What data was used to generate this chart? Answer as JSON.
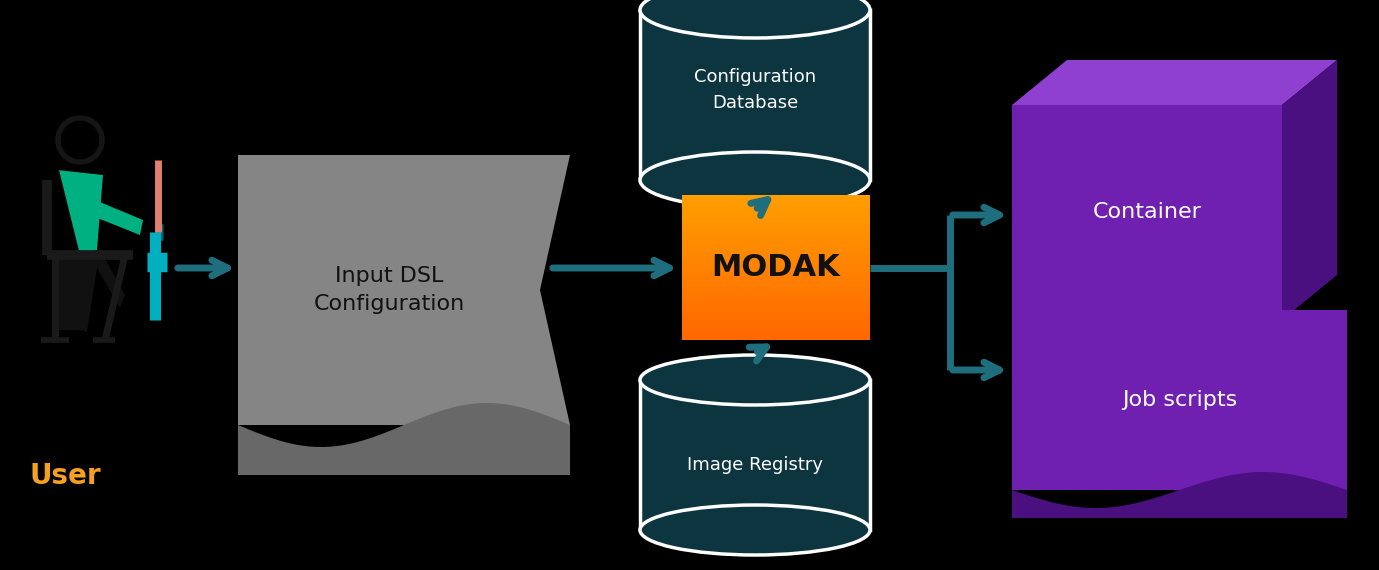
{
  "bg_color": "#000000",
  "text_color": "#ffffff",
  "teal_color": "#1e6e7e",
  "orange_light": "#f5a830",
  "orange_dark": "#c07010",
  "purple_front": "#7020b0",
  "purple_side": "#4a1080",
  "purple_top": "#9040d0",
  "db_body_color": "#0d3540",
  "db_edge_color": "#ffffff",
  "gray_main": "#858585",
  "gray_wave": "#686868",
  "user_label_color": "#f5a020",
  "user_label": "User",
  "dsl_label": "Input DSL\nConfiguration",
  "modak_label": "MODAK",
  "config_db_label": "Configuration\nDatabase",
  "image_reg_label": "Image Registry",
  "container_label": "Container",
  "job_scripts_label": "Job scripts"
}
